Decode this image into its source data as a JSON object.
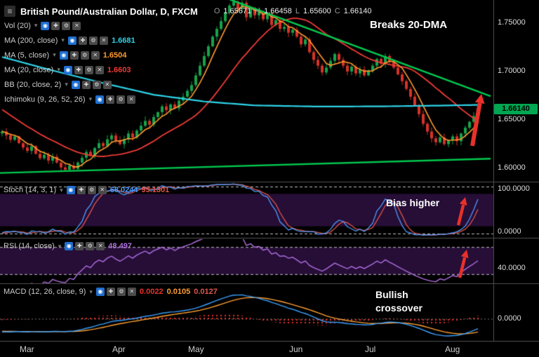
{
  "header": {
    "menu_glyph": "≡",
    "title": "British Pound/Australian Dollar, D, FXCM",
    "ohlc": {
      "o_label": "O",
      "o": "1.65671",
      "h_label": "H",
      "h": "1.66458",
      "l_label": "L",
      "l": "1.65600",
      "c_label": "C",
      "c": "1.66140"
    }
  },
  "legend": {
    "caret_glyph": "▾",
    "buttons": [
      {
        "name": "visibility-button",
        "glyph": "◉",
        "variant": "blue"
      },
      {
        "name": "add-button",
        "glyph": "✚",
        "variant": "gray"
      },
      {
        "name": "settings-button",
        "glyph": "⚙",
        "variant": "gray"
      },
      {
        "name": "close-button",
        "glyph": "✕",
        "variant": "gray"
      }
    ],
    "rows": [
      {
        "label": "Vol (20)",
        "value": "",
        "value_color": ""
      },
      {
        "label": "MA (200, close)",
        "value": "1.6681",
        "value_color": "#2ed3e8"
      },
      {
        "label": "MA (5, close)",
        "value": "1.6504",
        "value_color": "#ff9b2f"
      },
      {
        "label": "MA (20, close)",
        "value": "1.6603",
        "value_color": "#ef3b36"
      },
      {
        "label": "BB (20, close, 2)",
        "value": "",
        "value_color": ""
      },
      {
        "label": "Ichimoku (9, 26, 52, 26)",
        "value": "",
        "value_color": ""
      }
    ]
  },
  "panels": {
    "stoch": {
      "label": "Stoch (14, 3, 1)",
      "values": [
        {
          "text": "68.0244",
          "color": "#4f9bff"
        },
        {
          "text": "95.1301",
          "color": "#e0564a"
        }
      ]
    },
    "rsi": {
      "label": "RSI (14, close)",
      "values": [
        {
          "text": "48.497",
          "color": "#b06fe0"
        }
      ]
    },
    "macd": {
      "label": "MACD (12, 26, close, 9)",
      "values": [
        {
          "text": "0.0022",
          "color": "#e8312a"
        },
        {
          "text": "0.0105",
          "color": "#ffa033"
        },
        {
          "text": "0.0127",
          "color": "#e0564a"
        }
      ]
    }
  },
  "annotations": {
    "main": "Breaks 20-DMA",
    "stoch": "Bias higher",
    "macd_line1": "Bullish",
    "macd_line2": "crossover"
  },
  "axis": {
    "price_badge": "1.66140",
    "main": [
      {
        "label": "1.75000",
        "value": 1.75
      },
      {
        "label": "1.70000",
        "value": 1.7
      },
      {
        "label": "1.65000",
        "value": 1.65
      },
      {
        "label": "1.60000",
        "value": 1.6
      }
    ],
    "stoch": [
      {
        "label": "100.0000",
        "value": 100
      },
      {
        "label": "0.0000",
        "value": 0
      }
    ],
    "rsi": [
      {
        "label": "40.0000",
        "value": 40
      }
    ],
    "macd": [
      {
        "label": "0.0000",
        "value": 0
      }
    ]
  },
  "colors": {
    "background": "#000000",
    "candle_up": "#17a24a",
    "candle_down": "#d63228",
    "ma5": "#ff9b2f",
    "ma20": "#ef3b36",
    "ma200": "#2ed3e8",
    "trendline": "#00c94f",
    "stoch_k": "#4f9bff",
    "stoch_d": "#e0564a",
    "rsi": "#b06fe0",
    "macd": "#3aa0ff",
    "macd_signal": "#ffa033",
    "histogram": "#e8312a",
    "band_fill": "rgba(118,42,170,0.32)",
    "dashed_line": "rgba(255,255,255,0.75)",
    "badge": "#00a651",
    "arrow": "#e8312a",
    "separator": "#4a4a4a"
  },
  "chart_data": {
    "type": "candlestick",
    "title": "British Pound/Australian Dollar, D, FXCM",
    "pair": "GBP/AUD",
    "timeframe": "D",
    "ohlc_readout": {
      "open": 1.65671,
      "high": 1.66458,
      "low": 1.656,
      "close": 1.6614
    },
    "current_price": 1.6614,
    "y_domain": [
      1.587,
      1.7738
    ],
    "price_ticks": [
      1.75,
      1.7,
      1.65,
      1.6
    ],
    "months": [
      {
        "label": "Mar",
        "index": 6
      },
      {
        "label": "Apr",
        "index": 28
      },
      {
        "label": "May",
        "index": 46
      },
      {
        "label": "Jun",
        "index": 70
      },
      {
        "label": "Jul",
        "index": 88
      },
      {
        "label": "Aug",
        "index": 107
      }
    ],
    "pre_closes": [
      1.716,
      1.712,
      1.709,
      1.705,
      1.702,
      1.698,
      1.695,
      1.691,
      1.688,
      1.684,
      1.68,
      1.676,
      1.672,
      1.668,
      1.664,
      1.66,
      1.656,
      1.652,
      1.649,
      1.646,
      1.643,
      1.641,
      1.639,
      1.637,
      1.636
    ],
    "closes": [
      1.638,
      1.634,
      1.6295,
      1.633,
      1.626,
      1.6215,
      1.618,
      1.623,
      1.615,
      1.6105,
      1.614,
      1.608,
      1.612,
      1.606,
      1.601,
      1.5985,
      1.603,
      1.5995,
      1.606,
      1.611,
      1.617,
      1.613,
      1.621,
      1.626,
      1.623,
      1.63,
      1.634,
      1.629,
      1.625,
      1.63,
      1.636,
      1.632,
      1.639,
      1.644,
      1.649,
      1.645,
      1.653,
      1.658,
      1.664,
      1.66,
      1.666,
      1.662,
      1.67,
      1.674,
      1.68,
      1.686,
      1.696,
      1.706,
      1.716,
      1.726,
      1.736,
      1.744,
      1.752,
      1.761,
      1.768,
      1.772,
      1.765,
      1.771,
      1.756,
      1.765,
      1.758,
      1.762,
      1.754,
      1.76,
      1.748,
      1.753,
      1.744,
      1.746,
      1.74,
      1.743,
      1.736,
      1.728,
      1.733,
      1.72,
      1.712,
      1.706,
      1.699,
      1.704,
      1.711,
      1.718,
      1.712,
      1.706,
      1.7,
      1.705,
      1.698,
      1.702,
      1.696,
      1.701,
      1.706,
      1.713,
      1.708,
      1.716,
      1.71,
      1.704,
      1.697,
      1.69,
      1.682,
      1.674,
      1.665,
      1.656,
      1.646,
      1.638,
      1.631,
      1.627,
      1.632,
      1.625,
      1.629,
      1.633,
      1.628,
      1.636,
      1.642,
      1.648,
      1.654,
      1.6614
    ],
    "ma200_points": [
      [
        0,
        1.715
      ],
      [
        12,
        1.701
      ],
      [
        24,
        1.688
      ],
      [
        36,
        1.676
      ],
      [
        48,
        1.669
      ],
      [
        60,
        1.665
      ],
      [
        75,
        1.6638
      ],
      [
        90,
        1.664
      ],
      [
        104,
        1.6648
      ],
      [
        113,
        1.6655
      ]
    ],
    "trendlines": {
      "upper": [
        [
          54,
          1.7745
        ],
        [
          116,
          1.6745
        ]
      ],
      "lower": [
        [
          -1,
          1.5952
        ],
        [
          116,
          1.61
        ]
      ]
    },
    "indicators": {
      "stoch": {
        "period": 14,
        "k_smooth": 3,
        "d_period": 1,
        "band": [
          20,
          80
        ],
        "axis": [
          100,
          0
        ]
      },
      "rsi": {
        "period": 14,
        "band": [
          30,
          70
        ],
        "axis_tick": 40
      },
      "macd": {
        "fast": 12,
        "slow": 26,
        "signal": 9,
        "axis_tick": 0
      }
    }
  }
}
